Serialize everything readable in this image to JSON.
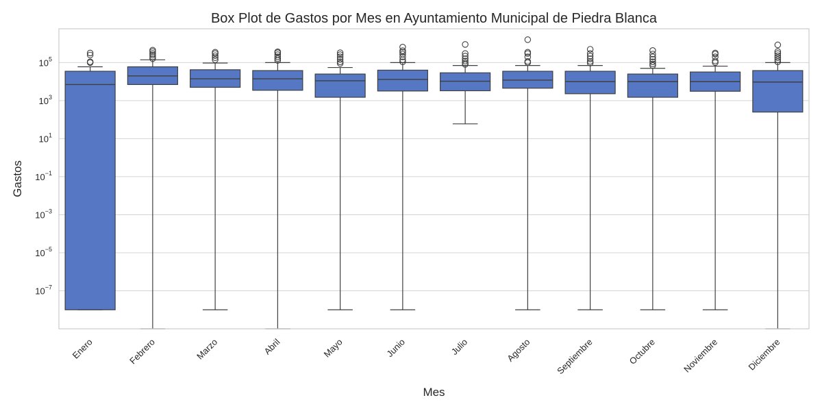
{
  "chart_data": {
    "type": "box",
    "title": "Box Plot de Gastos por Mes en Ayuntamiento Municipal de Piedra Blanca",
    "xlabel": "Mes",
    "ylabel": "Gastos",
    "y_scale": "log",
    "ylim": [
      1e-09,
      6000000.0
    ],
    "y_ticks": [
      {
        "value": 100000.0,
        "base": "10",
        "exp": "5"
      },
      {
        "value": 1000.0,
        "base": "10",
        "exp": "3"
      },
      {
        "value": 10.0,
        "base": "10",
        "exp": "1"
      },
      {
        "value": 0.1,
        "base": "10",
        "exp": "−1"
      },
      {
        "value": 0.001,
        "base": "10",
        "exp": "−3"
      },
      {
        "value": 1e-05,
        "base": "10",
        "exp": "−5"
      },
      {
        "value": 1e-07,
        "base": "10",
        "exp": "−7"
      }
    ],
    "grid": true,
    "box_color": "#5577c4",
    "categories": [
      "Enero",
      "Febrero",
      "Marzo",
      "Abril",
      "Mayo",
      "Junio",
      "Julio",
      "Agosto",
      "Septiembre",
      "Octubre",
      "Noviembre",
      "Diciembre"
    ],
    "boxes": [
      {
        "q1": 1e-08,
        "median": 7000,
        "q3": 35000,
        "whisker_low": 1e-08,
        "whisker_high": 60000,
        "outliers": [
          100000,
          110000,
          250000,
          320000
        ]
      },
      {
        "q1": 7000,
        "median": 20000,
        "q3": 60000,
        "whisker_low": 1e-09,
        "whisker_high": 140000,
        "outliers": [
          160000,
          200000,
          250000,
          300000,
          380000,
          450000
        ]
      },
      {
        "q1": 5000,
        "median": 14000,
        "q3": 42000,
        "whisker_low": 1e-08,
        "whisker_high": 95000,
        "outliers": [
          140000,
          180000,
          230000,
          300000,
          350000
        ]
      },
      {
        "q1": 3500,
        "median": 14000,
        "q3": 38000,
        "whisker_low": 1e-09,
        "whisker_high": 100000,
        "outliers": [
          130000,
          160000,
          200000,
          260000,
          330000,
          370000
        ]
      },
      {
        "q1": 1500,
        "median": 11000,
        "q3": 25000,
        "whisker_low": 1e-08,
        "whisker_high": 55000,
        "outliers": [
          90000,
          110000,
          150000,
          200000,
          260000,
          330000
        ]
      },
      {
        "q1": 3200,
        "median": 13000,
        "q3": 40000,
        "whisker_low": 1e-08,
        "whisker_high": 100000,
        "outliers": [
          110000,
          140000,
          200000,
          280000,
          350000,
          420000,
          650000
        ]
      },
      {
        "q1": 3300,
        "median": 10500,
        "q3": 29000,
        "whisker_low": 60,
        "whisker_high": 70000,
        "outliers": [
          80000,
          95000,
          120000,
          160000,
          220000,
          300000,
          900000
        ]
      },
      {
        "q1": 4500,
        "median": 12000,
        "q3": 35000,
        "whisker_low": 1e-08,
        "whisker_high": 70000,
        "outliers": [
          100000,
          115000,
          200000,
          300000,
          350000,
          1600000
        ]
      },
      {
        "q1": 2300,
        "median": 10000,
        "q3": 35000,
        "whisker_low": 1e-08,
        "whisker_high": 70000,
        "outliers": [
          95000,
          115000,
          160000,
          220000,
          300000,
          500000
        ]
      },
      {
        "q1": 1500,
        "median": 10000,
        "q3": 25000,
        "whisker_low": 1e-08,
        "whisker_high": 50000,
        "outliers": [
          70000,
          85000,
          110000,
          150000,
          200000,
          280000,
          430000
        ]
      },
      {
        "q1": 3100,
        "median": 10000,
        "q3": 32000,
        "whisker_low": 1e-08,
        "whisker_high": 65000,
        "outliers": [
          100000,
          120000,
          200000,
          280000,
          320000
        ]
      },
      {
        "q1": 250,
        "median": 9500,
        "q3": 38000,
        "whisker_low": 1e-09,
        "whisker_high": 100000,
        "outliers": [
          110000,
          140000,
          180000,
          230000,
          300000,
          380000,
          850000
        ]
      }
    ]
  }
}
